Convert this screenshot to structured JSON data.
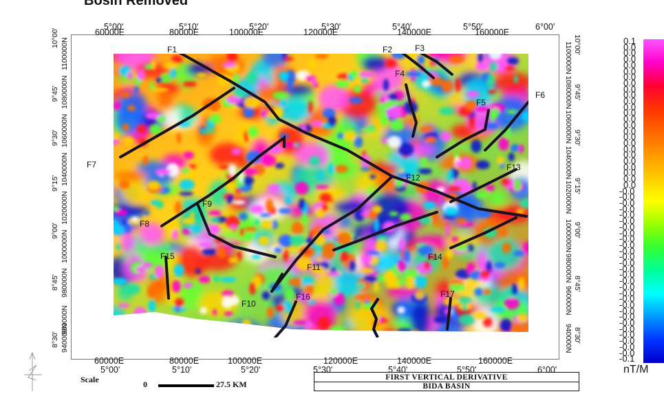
{
  "header": {
    "partial_title": "Bosin Removed"
  },
  "map": {
    "top_degrees": [
      "5°00'",
      "5°10'",
      "5°20'",
      "5°30'",
      "5°40'",
      "5°50'",
      "6°00'"
    ],
    "top_eastings": [
      "60000E",
      "80000E",
      "100000E",
      "120000E",
      "140000E",
      "160000E"
    ],
    "bottom_eastings": [
      "60000E",
      "80000E",
      "100000E",
      "120000E",
      "140000E",
      "160000E"
    ],
    "bottom_degrees": [
      "5°00'",
      "5°10'",
      "5°20'",
      "5°30'",
      "5°40'",
      "5°50'",
      "6°00'"
    ],
    "left_northings": [
      "1100000N",
      "1080000N",
      "1060000N",
      "1040000N",
      "1020000N",
      "1000000N",
      "980000N",
      "960000N",
      "940000N"
    ],
    "left_degrees": [
      "10°00'",
      "9°45'",
      "9°30'",
      "9°15'",
      "9°00'",
      "8°45'",
      "8°30'"
    ],
    "right_northings": [
      "1100000N",
      "1080000N",
      "1060000N",
      "1040000N",
      "1020000N",
      "1000000N",
      "980000N",
      "960000N",
      "940000N"
    ],
    "right_degrees": [
      "10°00'",
      "9°45'",
      "9°30'",
      "9°15'",
      "9°00'",
      "8°45'",
      "8°30'"
    ],
    "faults": [
      "F1",
      "F2",
      "F3",
      "F4",
      "F5",
      "F6",
      "F7",
      "F8",
      "F9",
      "F10",
      "F11",
      "F12",
      "F13",
      "F14",
      "F15",
      "F16",
      "F17"
    ]
  },
  "legend": {
    "labels": [
      "0.1",
      "0.0",
      "0.0",
      "0.0",
      "0.0",
      "0.0",
      "0.0",
      "0.0",
      "0.0",
      "0.0",
      "0.0",
      "0.0",
      "0.0",
      "0.0",
      "0.0",
      "0.0",
      "0.0",
      "0.0",
      "0.0",
      "0.0",
      "0.0",
      "0.0",
      "0.0",
      "0.0",
      "0.0",
      "-0.0",
      "-0.0",
      "-0.0",
      "-0.0",
      "-0.0",
      "-0.0",
      "-0.0",
      "-0.0",
      "-0.0",
      "-0.0",
      "-0.0",
      "-0.0",
      "-0.0",
      "-0.0",
      "-0.0",
      "-0.0",
      "-0.0",
      "-0.0",
      "-0.0",
      "-0.0",
      "-0.0",
      "-0.0",
      "-0.0",
      "-0.0",
      "-0.0",
      "-0.0",
      "-0.0",
      "-0.0",
      "-0.1"
    ],
    "unit": "nT/M",
    "colors": [
      "#ff55ff",
      "#ff00cc",
      "#ff0033",
      "#ff3300",
      "#ff6600",
      "#ff9900",
      "#ffcc00",
      "#ffff00",
      "#99ff00",
      "#33ff33",
      "#00ff99",
      "#00ffff",
      "#0099ff",
      "#0033ff",
      "#0000cc"
    ]
  },
  "scale": {
    "label": "Scale",
    "zero": "0",
    "distance": "27.5 KM"
  },
  "title_box": {
    "line1": "FIRST VERTICAL DERIVATIVE",
    "line2": "BIDA BASIN"
  }
}
